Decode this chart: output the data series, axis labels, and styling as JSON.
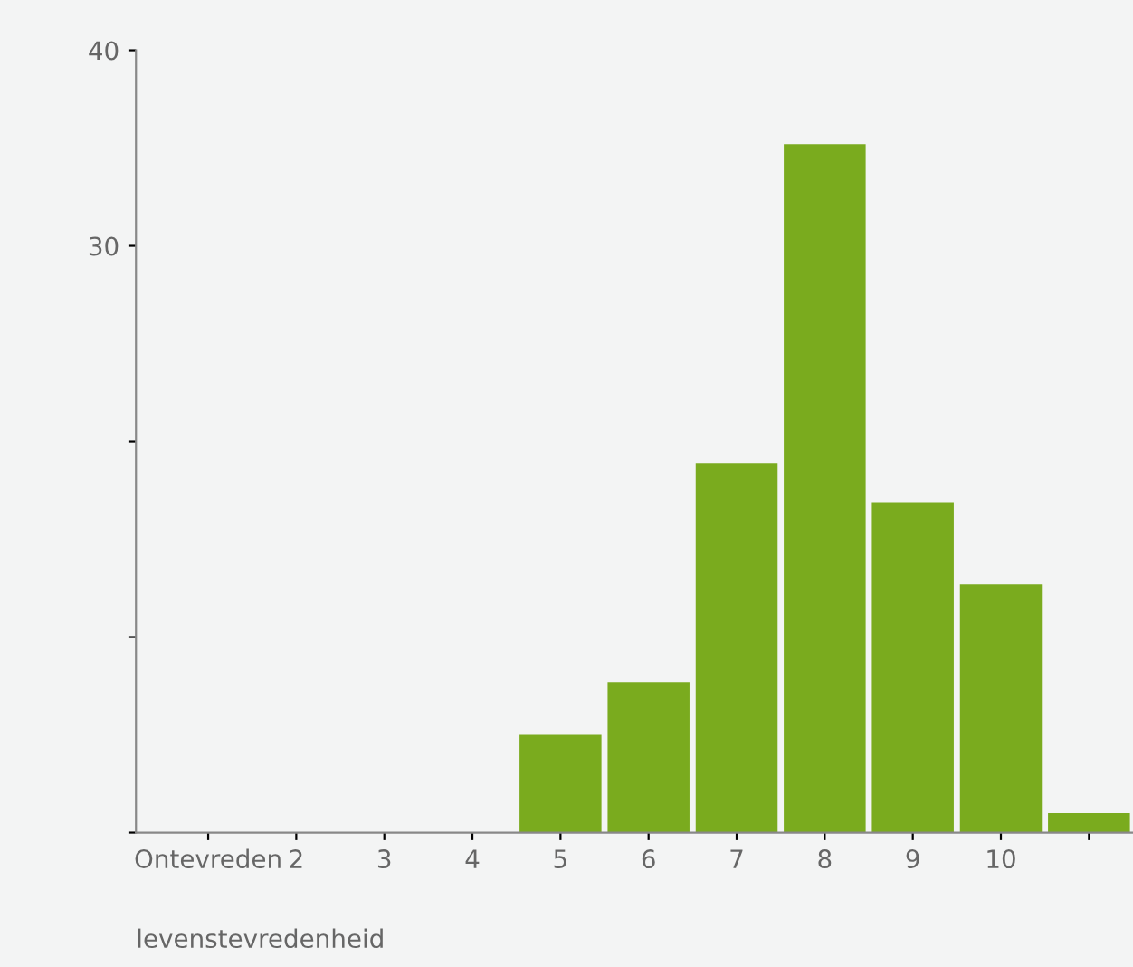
{
  "chart_data": {
    "type": "bar",
    "xlabel": "levenstevredenheid",
    "categories": [
      "Ontevreden",
      "2",
      "3",
      "4",
      "5",
      "6",
      "7",
      "8",
      "9",
      "10",
      null
    ],
    "values": [
      0,
      0,
      0,
      0,
      5,
      7.7,
      18.9,
      35.2,
      16.9,
      12.7,
      1
    ],
    "color": "#7aab1e",
    "ylim": [
      0,
      40
    ],
    "yticks": [
      {
        "value": 0,
        "label": null
      },
      {
        "value": 10,
        "label": null
      },
      {
        "value": 20,
        "label": null
      },
      30,
      40
    ],
    "grid": false,
    "legend": false
  }
}
